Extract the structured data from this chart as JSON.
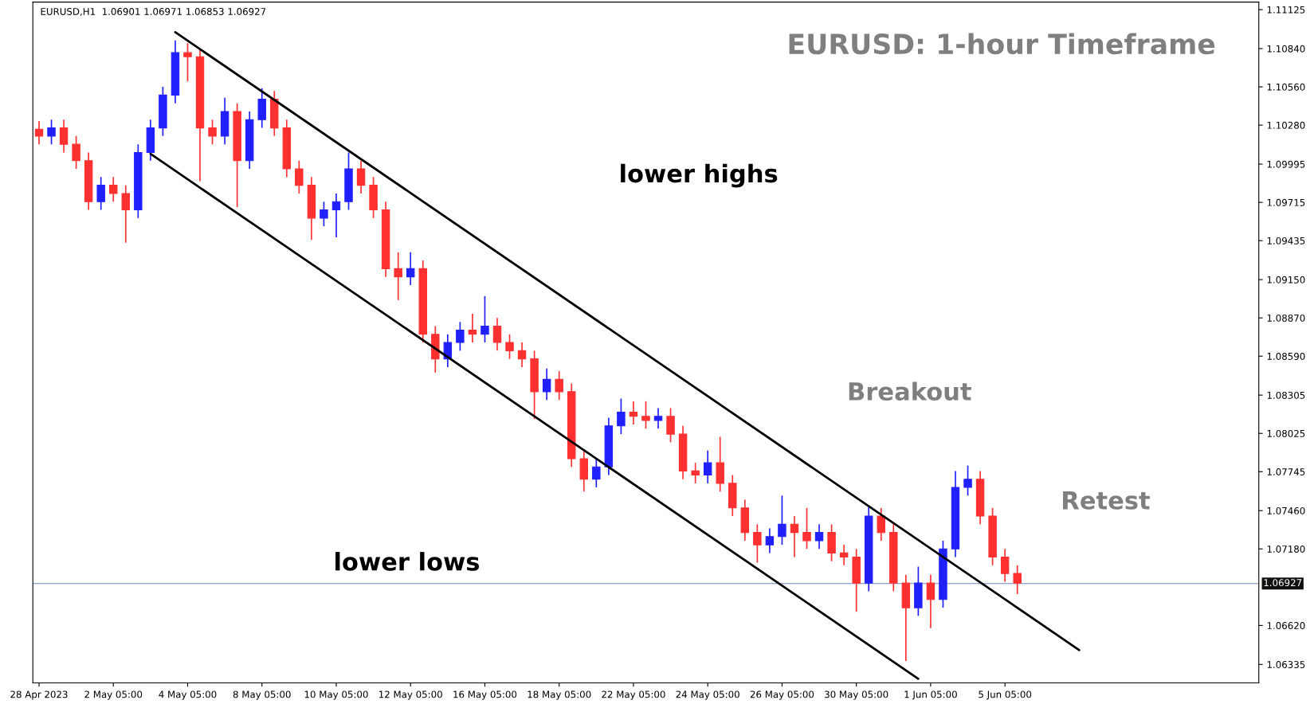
{
  "chart_data": {
    "type": "candlestick",
    "title": "EURUSD: 1-hour Timeframe",
    "subtitle": "EURUSD,H1  1.06901 1.06971 1.06853 1.06927",
    "categories": [
      "28 Apr 2023",
      null,
      null,
      null,
      null,
      null,
      "2 May 05:00",
      null,
      null,
      null,
      null,
      null,
      "4 May 05:00",
      null,
      null,
      null,
      null,
      null,
      "8 May 05:00",
      null,
      null,
      null,
      null,
      null,
      "10 May 05:00",
      null,
      null,
      null,
      null,
      null,
      "12 May 05:00",
      null,
      null,
      null,
      null,
      null,
      "16 May 05:00",
      null,
      null,
      null,
      null,
      null,
      "18 May 05:00",
      null,
      null,
      null,
      null,
      null,
      "22 May 05:00",
      null,
      null,
      null,
      null,
      null,
      "24 May 05:00",
      null,
      null,
      null,
      null,
      null,
      "26 May 05:00",
      null,
      null,
      null,
      null,
      null,
      "30 May 05:00",
      null,
      null,
      null,
      null,
      null,
      "1 Jun 05:00",
      null,
      null,
      null,
      null,
      null,
      "5 Jun 05:00",
      null,
      null,
      null,
      null,
      null,
      null,
      null,
      null,
      null,
      null,
      null,
      null,
      null,
      null,
      null,
      null,
      null,
      null,
      null,
      null
    ],
    "ohlc": [
      [
        1.1025,
        1.1031,
        1.1014,
        1.102
      ],
      [
        1.102,
        1.1032,
        1.1014,
        1.1026
      ],
      [
        1.1026,
        1.1032,
        1.1008,
        1.1014
      ],
      [
        1.1014,
        1.102,
        1.0996,
        1.1002
      ],
      [
        1.1002,
        1.1008,
        1.0966,
        1.0972
      ],
      [
        1.0972,
        1.099,
        1.0966,
        1.0984
      ],
      [
        1.0984,
        1.099,
        1.0972,
        1.0978
      ],
      [
        1.0978,
        1.0984,
        1.0942,
        1.0966
      ],
      [
        1.0966,
        1.1014,
        1.096,
        1.1008
      ],
      [
        1.1008,
        1.1032,
        1.1002,
        1.1026
      ],
      [
        1.1026,
        1.1056,
        1.102,
        1.105
      ],
      [
        1.105,
        1.109,
        1.1044,
        1.1081
      ],
      [
        1.1081,
        1.1088,
        1.106,
        1.1078
      ],
      [
        1.1078,
        1.1084,
        1.0987,
        1.1026
      ],
      [
        1.1026,
        1.1032,
        1.1014,
        1.102
      ],
      [
        1.102,
        1.1048,
        1.1014,
        1.1038
      ],
      [
        1.1038,
        1.1044,
        1.0968,
        1.1002
      ],
      [
        1.1002,
        1.1038,
        1.0996,
        1.1032
      ],
      [
        1.1032,
        1.1055,
        1.1026,
        1.1047
      ],
      [
        1.1047,
        1.1053,
        1.102,
        1.1026
      ],
      [
        1.1026,
        1.1032,
        1.099,
        1.0996
      ],
      [
        1.0996,
        1.1002,
        1.0978,
        1.0984
      ],
      [
        1.0984,
        1.099,
        1.0944,
        1.096
      ],
      [
        1.096,
        1.0972,
        1.0954,
        1.0966
      ],
      [
        1.0966,
        1.0978,
        1.0946,
        1.0972
      ],
      [
        1.0972,
        1.1008,
        1.0966,
        1.0996
      ],
      [
        1.0996,
        1.1002,
        1.0978,
        1.0984
      ],
      [
        1.0984,
        1.099,
        1.096,
        1.0966
      ],
      [
        1.0966,
        1.0972,
        1.0917,
        1.0923
      ],
      [
        1.0923,
        1.0935,
        1.09,
        1.0917
      ],
      [
        1.0917,
        1.0935,
        1.0911,
        1.0923
      ],
      [
        1.0923,
        1.0929,
        1.0869,
        1.0875
      ],
      [
        1.0875,
        1.0881,
        1.0847,
        1.0857
      ],
      [
        1.0857,
        1.0875,
        1.0851,
        1.0869
      ],
      [
        1.0869,
        1.0884,
        1.0863,
        1.0878
      ],
      [
        1.0878,
        1.089,
        1.0869,
        1.0875
      ],
      [
        1.0875,
        1.0903,
        1.0869,
        1.0881
      ],
      [
        1.0881,
        1.0887,
        1.0863,
        1.0869
      ],
      [
        1.0869,
        1.0875,
        1.0857,
        1.0863
      ],
      [
        1.0863,
        1.0869,
        1.0851,
        1.0857
      ],
      [
        1.0857,
        1.0863,
        1.0813,
        1.0833
      ],
      [
        1.0833,
        1.085,
        1.0827,
        1.0842
      ],
      [
        1.0842,
        1.0848,
        1.0827,
        1.0833
      ],
      [
        1.0833,
        1.0839,
        1.0778,
        1.0784
      ],
      [
        1.0784,
        1.079,
        1.076,
        1.0769
      ],
      [
        1.0769,
        1.0784,
        1.0763,
        1.0778
      ],
      [
        1.0778,
        1.0814,
        1.0772,
        1.0808
      ],
      [
        1.0808,
        1.0828,
        1.0802,
        1.0818
      ],
      [
        1.0818,
        1.0826,
        1.0809,
        1.0815
      ],
      [
        1.0815,
        1.0826,
        1.0806,
        1.0812
      ],
      [
        1.0812,
        1.0821,
        1.0806,
        1.0815
      ],
      [
        1.0815,
        1.0821,
        1.0796,
        1.0802
      ],
      [
        1.0802,
        1.0808,
        1.0769,
        1.0775
      ],
      [
        1.0775,
        1.0781,
        1.0766,
        1.0772
      ],
      [
        1.0772,
        1.079,
        1.0766,
        1.0781
      ],
      [
        1.0781,
        1.08,
        1.076,
        1.0766
      ],
      [
        1.0766,
        1.0772,
        1.0742,
        1.0748
      ],
      [
        1.0748,
        1.0754,
        1.0724,
        1.073
      ],
      [
        1.073,
        1.0736,
        1.0708,
        1.0721
      ],
      [
        1.0721,
        1.0733,
        1.0715,
        1.0727
      ],
      [
        1.0727,
        1.0757,
        1.0721,
        1.0736
      ],
      [
        1.0736,
        1.0742,
        1.0712,
        1.073
      ],
      [
        1.073,
        1.0748,
        1.0718,
        1.0724
      ],
      [
        1.0724,
        1.0736,
        1.0718,
        1.073
      ],
      [
        1.073,
        1.0736,
        1.0709,
        1.0715
      ],
      [
        1.0715,
        1.0721,
        1.0706,
        1.0712
      ],
      [
        1.0712,
        1.0718,
        1.0672,
        1.0693
      ],
      [
        1.0693,
        1.075,
        1.0687,
        1.0742
      ],
      [
        1.0742,
        1.0748,
        1.0724,
        1.073
      ],
      [
        1.073,
        1.0736,
        1.0687,
        1.0693
      ],
      [
        1.0693,
        1.0699,
        1.0636,
        1.0675
      ],
      [
        1.0675,
        1.0705,
        1.0669,
        1.0693
      ],
      [
        1.0693,
        1.0699,
        1.066,
        1.0681
      ],
      [
        1.0681,
        1.0724,
        1.0675,
        1.0718
      ],
      [
        1.0718,
        1.0775,
        1.0712,
        1.0763
      ],
      [
        1.0763,
        1.0779,
        1.0757,
        1.0769
      ],
      [
        1.0769,
        1.0775,
        1.0736,
        1.0742
      ],
      [
        1.0742,
        1.0748,
        1.0706,
        1.0712
      ],
      [
        1.0712,
        1.0718,
        1.0694,
        1.07
      ],
      [
        1.07,
        1.0706,
        1.0685,
        1.0693
      ],
      null,
      null,
      null,
      null,
      null,
      null,
      null,
      null,
      null,
      null,
      null,
      null,
      null,
      null,
      null,
      null,
      null,
      null,
      null
    ],
    "colors": [
      "#ff3030",
      "#2020ff",
      "#ff3030",
      "#ff3030",
      "#ff3030",
      "#2020ff",
      "#ff3030",
      "#ff3030",
      "#2020ff",
      "#2020ff",
      "#2020ff",
      "#2020ff",
      "#ff3030",
      "#ff3030",
      "#ff3030",
      "#2020ff",
      "#ff3030",
      "#2020ff",
      "#2020ff",
      "#ff3030",
      "#ff3030",
      "#ff3030",
      "#ff3030",
      "#2020ff",
      "#2020ff",
      "#2020ff",
      "#ff3030",
      "#ff3030",
      "#ff3030",
      "#ff3030",
      "#2020ff",
      "#ff3030",
      "#ff3030",
      "#2020ff",
      "#2020ff",
      "#ff3030",
      "#2020ff",
      "#ff3030",
      "#ff3030",
      "#ff3030",
      "#ff3030",
      "#2020ff",
      "#ff3030",
      "#ff3030",
      "#ff3030",
      "#2020ff",
      "#2020ff",
      "#2020ff",
      "#ff3030",
      "#ff3030",
      "#2020ff",
      "#ff3030",
      "#ff3030",
      "#ff3030",
      "#2020ff",
      "#ff3030",
      "#ff3030",
      "#ff3030",
      "#ff3030",
      "#2020ff",
      "#2020ff",
      "#ff3030",
      "#ff3030",
      "#2020ff",
      "#ff3030",
      "#ff3030",
      "#ff3030",
      "#2020ff",
      "#ff3030",
      "#ff3030",
      "#ff3030",
      "#2020ff",
      "#ff3030",
      "#2020ff",
      "#2020ff",
      "#2020ff",
      "#ff3030",
      "#ff3030",
      "#ff3030",
      "#ff3030",
      null,
      null,
      null,
      null,
      null,
      null,
      null,
      null,
      null,
      null,
      null,
      null,
      null,
      null,
      null,
      null,
      null,
      null,
      null
    ],
    "series": [
      {
        "type": "line",
        "color": "#000000",
        "values": [
          null,
          null,
          null,
          null,
          null,
          null,
          null,
          null,
          null,
          null,
          null,
          1.1096,
          null,
          null,
          null,
          null,
          null,
          null,
          null,
          null,
          null,
          null,
          null,
          null,
          null,
          null,
          null,
          null,
          null,
          null,
          null,
          null,
          null,
          null,
          null,
          null,
          null,
          null,
          null,
          null,
          null,
          null,
          null,
          null,
          null,
          null,
          null,
          null,
          null,
          null,
          null,
          null,
          null,
          null,
          null,
          null,
          null,
          null,
          null,
          null,
          null,
          null,
          null,
          null,
          null,
          null,
          null,
          null,
          null,
          null,
          null,
          null,
          null,
          null,
          null,
          null,
          null,
          null,
          null,
          null,
          null,
          null,
          null,
          null,
          1.0644,
          null,
          null,
          null,
          null,
          null,
          null,
          null,
          null,
          null,
          null,
          null,
          null,
          null,
          null
        ]
      },
      {
        "type": "line",
        "color": "#000000",
        "values": [
          null,
          null,
          null,
          null,
          null,
          null,
          null,
          null,
          null,
          1.1007,
          null,
          null,
          null,
          null,
          null,
          null,
          null,
          null,
          null,
          null,
          null,
          null,
          null,
          null,
          null,
          null,
          null,
          null,
          null,
          null,
          null,
          null,
          null,
          null,
          null,
          null,
          null,
          null,
          null,
          null,
          null,
          null,
          null,
          null,
          null,
          null,
          null,
          null,
          null,
          null,
          null,
          null,
          null,
          null,
          null,
          null,
          null,
          null,
          null,
          null,
          null,
          null,
          null,
          null,
          null,
          null,
          null,
          null,
          null,
          null,
          null,
          1.0623,
          null,
          null,
          null,
          null,
          null,
          null,
          null,
          null,
          null,
          null,
          null,
          null,
          null,
          null,
          null,
          null,
          null,
          null,
          null,
          null,
          null,
          null,
          null,
          null,
          null,
          null,
          null
        ]
      }
    ],
    "ylim": [
      1.062,
      1.1118
    ],
    "yticks": [
      1.06335,
      {
        "value": 1.0662,
        "label": "1.06620"
      },
      {
        "value": 1.0718,
        "label": "1.07180"
      },
      {
        "value": 1.0746,
        "label": "1.07460"
      },
      1.07745,
      1.08025,
      1.08305,
      {
        "value": 1.0859,
        "label": "1.08590"
      },
      {
        "value": 1.0887,
        "label": "1.08870"
      },
      {
        "value": 1.0915,
        "label": "1.09150"
      },
      1.09435,
      1.09715,
      1.09995,
      {
        "value": 1.1028,
        "label": "1.10280"
      },
      {
        "value": 1.1056,
        "label": "1.10560"
      },
      {
        "value": 1.1084,
        "label": "1.10840"
      },
      1.11125
    ],
    "ref_lines": [
      {
        "axis": "y",
        "value": 1.06927,
        "label": "1.06927",
        "color": "#6e86b8"
      }
    ],
    "annotations": [
      "lower highs",
      "lower lows",
      "Breakout",
      "Retest"
    ],
    "grid": false,
    "legend": false
  }
}
